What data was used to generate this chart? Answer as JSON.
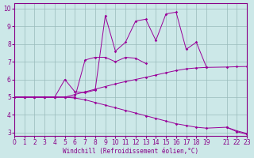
{
  "xlabel": "Windchill (Refroidissement éolien,°C)",
  "bg_color": "#cce8e8",
  "line_color": "#990099",
  "grid_color": "#99bbbb",
  "xlim": [
    0,
    23
  ],
  "ylim": [
    2.8,
    10.3
  ],
  "xticks": [
    0,
    1,
    2,
    3,
    4,
    5,
    6,
    7,
    8,
    9,
    10,
    11,
    12,
    13,
    14,
    15,
    16,
    17,
    18,
    19,
    21,
    22,
    23
  ],
  "yticks": [
    3,
    4,
    5,
    6,
    7,
    8,
    9,
    10
  ],
  "line1_x": [
    0,
    1,
    2,
    3,
    4,
    5,
    6,
    7,
    8,
    9,
    10,
    11,
    12,
    13,
    14,
    15,
    16,
    17,
    18,
    19,
    21,
    22,
    23
  ],
  "line1_y": [
    5.0,
    5.0,
    5.0,
    5.0,
    5.0,
    5.0,
    5.15,
    5.3,
    5.45,
    5.6,
    5.75,
    5.88,
    6.0,
    6.12,
    6.25,
    6.38,
    6.5,
    6.6,
    6.65,
    6.68,
    6.7,
    6.72,
    6.73
  ],
  "line2_x": [
    0,
    1,
    2,
    3,
    4,
    5,
    6,
    7,
    8,
    9,
    10,
    11,
    12,
    13,
    14,
    15,
    16,
    17,
    18,
    19,
    21,
    22,
    23
  ],
  "line2_y": [
    5.0,
    5.0,
    5.0,
    5.0,
    5.0,
    5.0,
    4.95,
    4.85,
    4.7,
    4.55,
    4.4,
    4.25,
    4.1,
    3.95,
    3.8,
    3.65,
    3.5,
    3.4,
    3.3,
    3.25,
    3.3,
    3.1,
    2.95
  ],
  "line3_x": [
    0,
    1,
    2,
    3,
    4,
    5,
    6,
    7,
    8,
    9,
    10,
    11,
    12,
    13,
    14,
    15,
    16,
    17,
    18,
    19
  ],
  "line3_y": [
    5.0,
    5.0,
    5.0,
    5.0,
    5.0,
    6.0,
    5.3,
    5.25,
    5.4,
    9.6,
    7.6,
    8.1,
    9.3,
    9.4,
    8.2,
    9.7,
    9.8,
    7.7,
    8.1,
    6.7
  ],
  "line4_x": [
    0,
    1,
    2,
    3,
    4,
    5,
    6,
    7,
    8,
    9,
    10,
    11,
    12,
    13
  ],
  "line4_y": [
    5.0,
    5.0,
    5.0,
    5.0,
    5.0,
    5.0,
    5.0,
    7.1,
    7.25,
    7.25,
    7.0,
    7.25,
    7.2,
    6.9
  ],
  "line5_x": [
    21,
    22,
    23
  ],
  "line5_y": [
    3.3,
    3.05,
    2.9
  ]
}
